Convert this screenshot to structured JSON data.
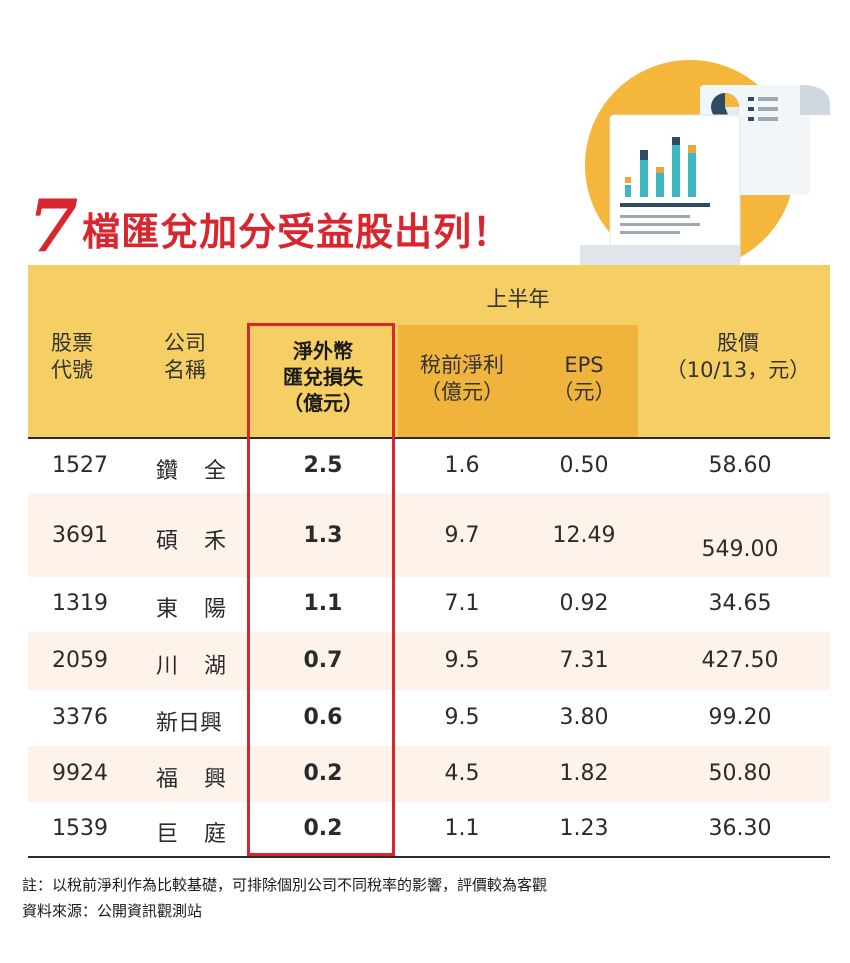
{
  "title": {
    "number": "7",
    "text": "檔匯兌加分受益股出列！"
  },
  "header": {
    "stock_code": [
      "股票",
      "代號"
    ],
    "company_name": [
      "公司",
      "名稱"
    ],
    "half_year": "上半年",
    "fx_loss": [
      "淨外幣",
      "匯兌損失",
      "（億元）"
    ],
    "pretax": [
      "稅前淨利",
      "（億元）"
    ],
    "eps": [
      "EPS",
      "（元）"
    ],
    "price": [
      "股價",
      "（10/13，元）"
    ]
  },
  "rows": [
    {
      "code": "1527",
      "name": "鑽　全",
      "fx": "2.5",
      "pretax": "1.6",
      "eps": "0.50",
      "price": "58.60"
    },
    {
      "code": "3691",
      "name": "碩　禾",
      "fx": "1.3",
      "pretax": "9.7",
      "eps": "12.49",
      "price": "549.00"
    },
    {
      "code": "1319",
      "name": "東　陽",
      "fx": "1.1",
      "pretax": "7.1",
      "eps": "0.92",
      "price": "34.65"
    },
    {
      "code": "2059",
      "name": "川　湖",
      "fx": "0.7",
      "pretax": "9.5",
      "eps": "7.31",
      "price": "427.50"
    },
    {
      "code": "3376",
      "name": "新日興",
      "fx": "0.6",
      "pretax": "9.5",
      "eps": "3.80",
      "price": "99.20"
    },
    {
      "code": "9924",
      "name": "福　興",
      "fx": "0.2",
      "pretax": "4.5",
      "eps": "1.82",
      "price": "50.80"
    },
    {
      "code": "1539",
      "name": "巨　庭",
      "fx": "0.2",
      "pretax": "1.1",
      "eps": "1.23",
      "price": "36.30"
    }
  ],
  "notes": {
    "note": "註：以稅前淨利作為比較基礎，可排除個別公司不同稅率的影響，評價較為客觀",
    "source": "資料來源：公開資訊觀測站"
  },
  "colors": {
    "accent_red": "#d9262e",
    "header_yellow": "#f5cf63",
    "header_orange": "#f0b33c",
    "row_alt": "#fdf3ea"
  },
  "icons": [
    "report-chart-illustration"
  ]
}
